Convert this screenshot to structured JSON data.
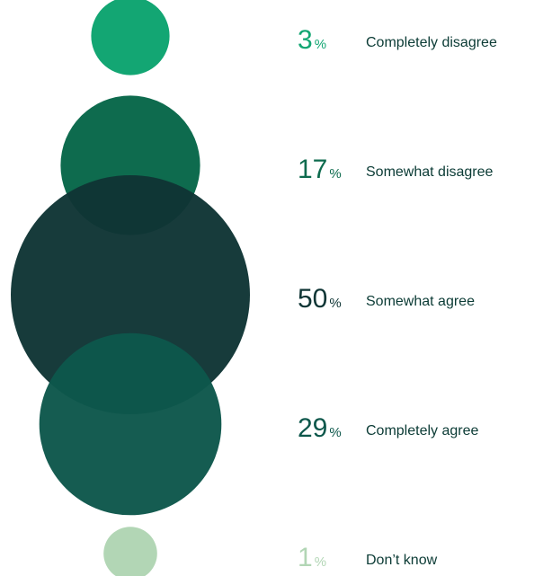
{
  "chart_data": {
    "type": "bubble",
    "unit": "%",
    "categories": [
      "Completely disagree",
      "Somewhat disagree",
      "Somewhat agree",
      "Completely agree",
      "Don’t know"
    ],
    "values": [
      3,
      17,
      50,
      29,
      1
    ],
    "colors": [
      "#13a673",
      "#0e6b4e",
      "#0f3535",
      "#0d574b",
      "#b2d6b5"
    ],
    "value_colors": [
      "#13a673",
      "#0e6b4e",
      "#0f3535",
      "#0d574b",
      "#b2d6b5"
    ]
  }
}
